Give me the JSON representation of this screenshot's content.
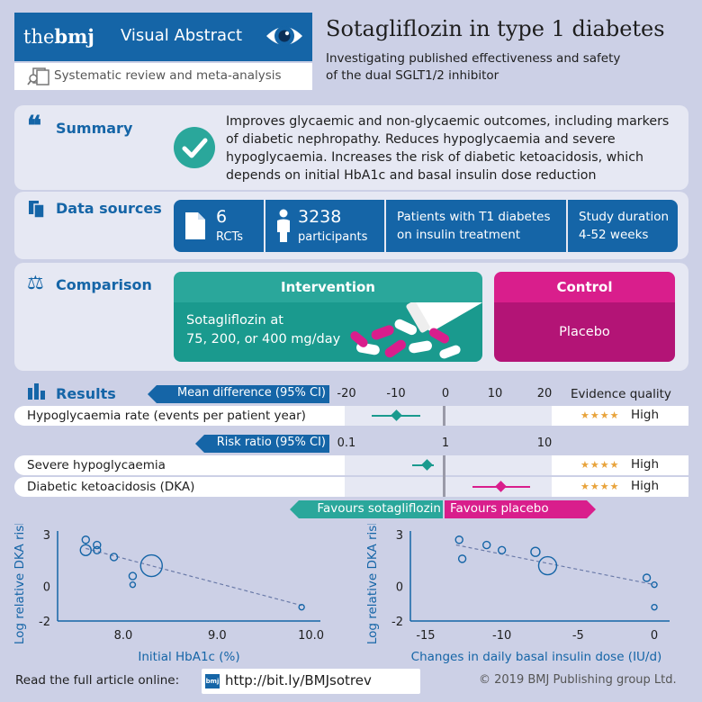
{
  "header": {
    "logo_the": "the",
    "logo_bmj": "bmj",
    "visual_abstract": "Visual Abstract",
    "subheading": "Systematic review and meta-analysis",
    "title": "Sotagliflozin in type 1 diabetes",
    "subtitle_line1": "Investigating published effectiveness and safety",
    "subtitle_line2": "of the dual SGLT1/2 inhibitor"
  },
  "summary": {
    "title": "Summary",
    "text": "Improves glycaemic and non-glycaemic outcomes, including markers of diabetic nephropathy. Reduces hypoglycaemia and severe hypoglycaemia. Increases the risk of diabetic ketoacidosis, which depends on initial HbA1c and basal insulin dose reduction"
  },
  "data_sources": {
    "title": "Data sources",
    "rcts_num": "6",
    "rcts_label": "RCTs",
    "participants_num": "3238",
    "participants_label": "participants",
    "patients_line1": "Patients with T1 diabetes",
    "patients_line2": "on insulin treatment",
    "duration_line1": "Study duration",
    "duration_line2": "4-52 weeks"
  },
  "comparison": {
    "title": "Comparison",
    "intervention_label": "Intervention",
    "intervention_line1": "Sotagliflozin at",
    "intervention_line2": "75, 200, or 400 mg/day",
    "control_label": "Control",
    "control_text": "Placebo"
  },
  "results": {
    "title": "Results",
    "md_label": "Mean difference (95% CI)",
    "md_ticks": [
      "-20",
      "-10",
      "0",
      "10",
      "20"
    ],
    "evidence_quality": "Evidence quality",
    "rr_label": "Risk ratio (95% CI)",
    "rr_ticks": [
      "0.1",
      "1",
      "10"
    ],
    "rows": [
      {
        "label": "Hypoglycaemia rate (events per patient year)",
        "stars": "★★★★",
        "quality": "High"
      },
      {
        "label": "Severe hypoglycaemia",
        "stars": "★★★★",
        "quality": "High"
      },
      {
        "label": "Diabetic ketoacidosis (DKA)",
        "stars": "★★★★",
        "quality": "High"
      }
    ],
    "favours_left": "Favours sotagliflozin",
    "favours_right": "Favours placebo"
  },
  "chart_data": [
    {
      "type": "scatter",
      "title": "",
      "xlabel": "Initial HbA1c (%)",
      "ylabel": "Log relative DKA risk",
      "xlim": [
        7.3,
        10.1
      ],
      "ylim": [
        -2,
        3
      ],
      "xticks": [
        "8.0",
        "9.0",
        "10.0"
      ],
      "yticks": [
        "3",
        "0",
        "-2"
      ],
      "x": [
        7.6,
        7.6,
        7.72,
        7.72,
        7.9,
        8.1,
        8.1,
        8.3,
        9.9
      ],
      "y": [
        2.7,
        2.1,
        2.4,
        2.1,
        1.7,
        0.6,
        0.1,
        1.2,
        -1.2
      ],
      "sizes": [
        4,
        6,
        4,
        4,
        4,
        4,
        3,
        12,
        3
      ],
      "trend": [
        [
          7.6,
          2.2
        ],
        [
          9.9,
          -1.1
        ]
      ]
    },
    {
      "type": "scatter",
      "title": "",
      "xlabel": "Changes in daily basal insulin dose (IU/d)",
      "ylabel": "Log relative DKA risk",
      "xlim": [
        -16,
        1
      ],
      "ylim": [
        -2,
        3
      ],
      "xticks": [
        "-15",
        "-10",
        "-5",
        "0"
      ],
      "yticks": [
        "3",
        "0",
        "-2"
      ],
      "x": [
        -12.8,
        -12.6,
        -11,
        -10,
        -7.8,
        -7,
        -0.5,
        0,
        0
      ],
      "y": [
        2.7,
        1.6,
        2.4,
        2.1,
        2.0,
        1.2,
        0.5,
        0.1,
        -1.2
      ],
      "sizes": [
        4,
        4,
        4,
        4,
        5,
        10,
        4,
        3,
        3
      ],
      "trend": [
        [
          -13,
          2.4
        ],
        [
          0,
          0.1
        ]
      ]
    }
  ],
  "footer": {
    "read_label": "Read the full article online:",
    "link_icon": "bmj",
    "link": "http://bit.ly/BMJsotrev",
    "copyright": "© 2019 BMJ Publishing group Ltd."
  },
  "colors": {
    "blue": "#1565a7",
    "teal": "#1a9a8e",
    "magenta": "#d91e8c"
  }
}
